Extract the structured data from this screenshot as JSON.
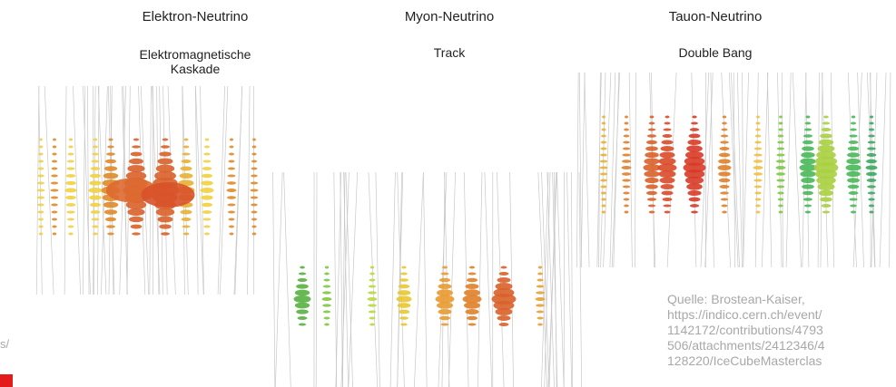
{
  "panels": [
    {
      "title": "Elektron-Neutrino",
      "subtitle": [
        "Elektromagnetische",
        "Kaskade"
      ]
    },
    {
      "title": "Myon-Neutrino",
      "subtitle": [
        "Track"
      ]
    },
    {
      "title": "Tauon-Neutrino",
      "subtitle": [
        "Double Bang"
      ]
    }
  ],
  "source": {
    "lines": [
      "Quelle: Brostean-Kaiser,",
      "https://indico.cern.ch/event/",
      "1142172/contributions/4793",
      "506/attachments/2412346/4",
      "128220/IceCubeMasterclas"
    ]
  },
  "edge_text": "s/"
}
